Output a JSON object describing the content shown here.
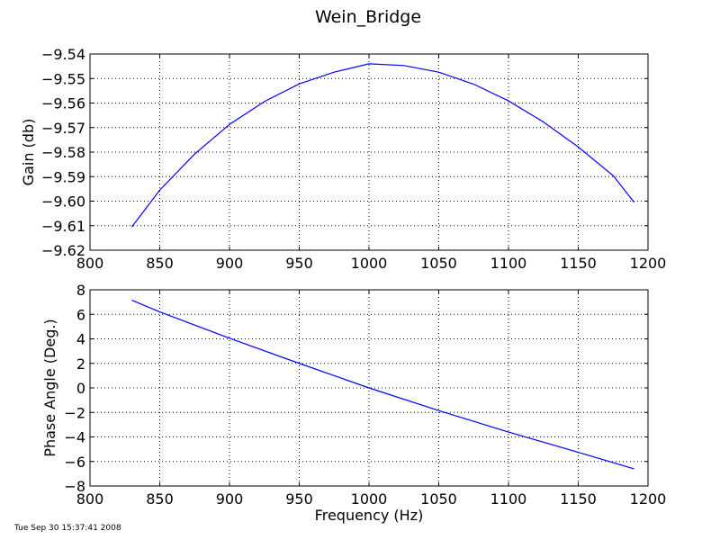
{
  "figure": {
    "title": "Wein_Bridge",
    "timestamp": "Tue Sep 30 15:37:41 2008"
  },
  "colors": {
    "line": "#0000ff",
    "axes": "#000000",
    "background": "#ffffff"
  },
  "chart_data": [
    {
      "type": "line",
      "ylabel": "Gain (db)",
      "xlabel": "",
      "xlim": [
        800,
        1200
      ],
      "ylim": [
        -9.62,
        -9.54
      ],
      "xticks": [
        800,
        850,
        900,
        950,
        1000,
        1050,
        1100,
        1150,
        1200
      ],
      "yticks": [
        -9.62,
        -9.61,
        -9.6,
        -9.59,
        -9.58,
        -9.57,
        -9.56,
        -9.55,
        -9.54
      ],
      "xtick_labels": [
        "800",
        "850",
        "900",
        "950",
        "1000",
        "1050",
        "1100",
        "1150",
        "1200"
      ],
      "ytick_labels": [
        "−9.62",
        "−9.61",
        "−9.60",
        "−9.59",
        "−9.58",
        "−9.57",
        "−9.56",
        "−9.55",
        "−9.54"
      ],
      "grid": true,
      "series": [
        {
          "x": [
            830,
            850,
            875,
            900,
            925,
            950,
            975,
            1000,
            1025,
            1050,
            1075,
            1100,
            1125,
            1150,
            1175,
            1190
          ],
          "y": [
            -9.6105,
            -9.5955,
            -9.5808,
            -9.5687,
            -9.5594,
            -9.5522,
            -9.5474,
            -9.544,
            -9.5447,
            -9.5474,
            -9.5523,
            -9.5591,
            -9.5677,
            -9.5779,
            -9.5896,
            -9.6004
          ]
        }
      ]
    },
    {
      "type": "line",
      "ylabel": "Phase Angle (Deg.)",
      "xlabel": "Frequency (Hz)",
      "xlim": [
        800,
        1200
      ],
      "ylim": [
        -8,
        8
      ],
      "xticks": [
        800,
        850,
        900,
        950,
        1000,
        1050,
        1100,
        1150,
        1200
      ],
      "yticks": [
        -8,
        -6,
        -4,
        -2,
        0,
        2,
        4,
        6,
        8
      ],
      "xtick_labels": [
        "800",
        "850",
        "900",
        "950",
        "1000",
        "1050",
        "1100",
        "1150",
        "1200"
      ],
      "ytick_labels": [
        "−8",
        "−6",
        "−4",
        "−2",
        "0",
        "2",
        "4",
        "6",
        "8"
      ],
      "grid": true,
      "series": [
        {
          "x": [
            830,
            850,
            900,
            950,
            1000,
            1050,
            1100,
            1150,
            1190
          ],
          "y": [
            7.15,
            6.2,
            4.05,
            2.0,
            0.0,
            -1.85,
            -3.6,
            -5.25,
            -6.6
          ]
        }
      ]
    }
  ]
}
